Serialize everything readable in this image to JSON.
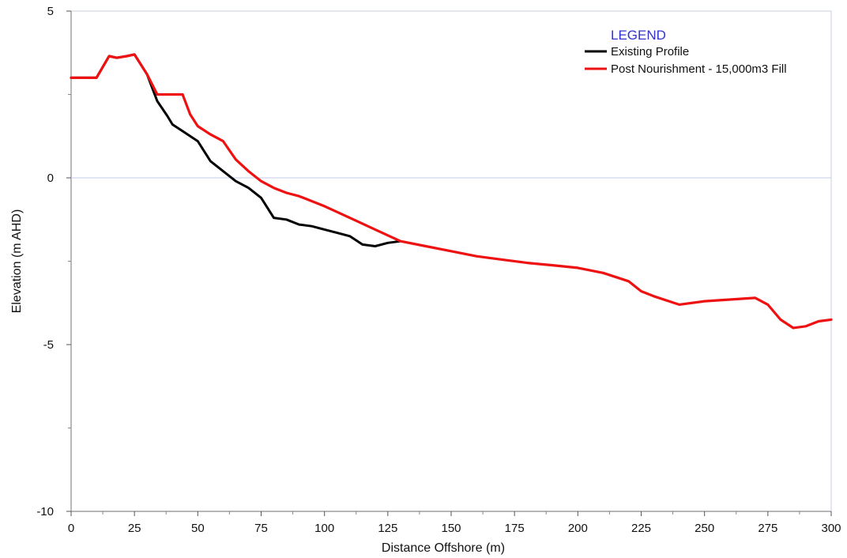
{
  "chart_data": {
    "type": "line",
    "title": "",
    "xlabel": "Distance Offshore (m)",
    "ylabel": "Elevation (m AHD)",
    "xlim": [
      0,
      300
    ],
    "ylim": [
      -10,
      5
    ],
    "x_ticks": [
      "0",
      "25",
      "50",
      "75",
      "100",
      "125",
      "150",
      "175",
      "200",
      "225",
      "250",
      "275",
      "300"
    ],
    "y_ticks": [
      "5",
      "0",
      "-5",
      "-10"
    ],
    "grid": "zero line only",
    "legend": {
      "title": "LEGEND",
      "title_color": "#3333cc",
      "placement": "top-right"
    },
    "series": [
      {
        "name": "Existing Profile",
        "color": "#000000",
        "x": [
          0,
          10,
          15,
          18,
          22,
          25,
          30,
          34,
          38,
          40,
          45,
          50,
          55,
          60,
          65,
          70,
          75,
          80,
          85,
          90,
          95,
          100,
          105,
          110,
          115,
          120,
          125,
          130
        ],
        "y": [
          3.0,
          3.0,
          3.65,
          3.6,
          3.65,
          3.7,
          3.1,
          2.3,
          1.85,
          1.6,
          1.35,
          1.1,
          0.5,
          0.2,
          -0.1,
          -0.3,
          -0.6,
          -1.2,
          -1.25,
          -1.4,
          -1.45,
          -1.55,
          -1.65,
          -1.75,
          -2.0,
          -2.05,
          -1.95,
          -1.9
        ]
      },
      {
        "name": "Post Nourishment - 15,000m3 Fill",
        "color": "#ee1111",
        "x": [
          0,
          10,
          15,
          18,
          22,
          25,
          30,
          34,
          38,
          44,
          47,
          50,
          55,
          60,
          65,
          70,
          75,
          80,
          85,
          90,
          95,
          100,
          110,
          120,
          130,
          140,
          150,
          160,
          170,
          180,
          190,
          200,
          210,
          220,
          225,
          230,
          240,
          250,
          260,
          270,
          275,
          280,
          285,
          290,
          295,
          300
        ],
        "y": [
          3.0,
          3.0,
          3.65,
          3.6,
          3.65,
          3.7,
          3.1,
          2.5,
          2.5,
          2.5,
          1.9,
          1.55,
          1.3,
          1.1,
          0.55,
          0.2,
          -0.1,
          -0.3,
          -0.45,
          -0.55,
          -0.7,
          -0.85,
          -1.2,
          -1.55,
          -1.9,
          -2.05,
          -2.2,
          -2.35,
          -2.45,
          -2.55,
          -2.62,
          -2.7,
          -2.85,
          -3.1,
          -3.4,
          -3.55,
          -3.8,
          -3.7,
          -3.65,
          -3.6,
          -3.8,
          -4.25,
          -4.5,
          -4.45,
          -4.3,
          -4.25
        ]
      }
    ]
  }
}
